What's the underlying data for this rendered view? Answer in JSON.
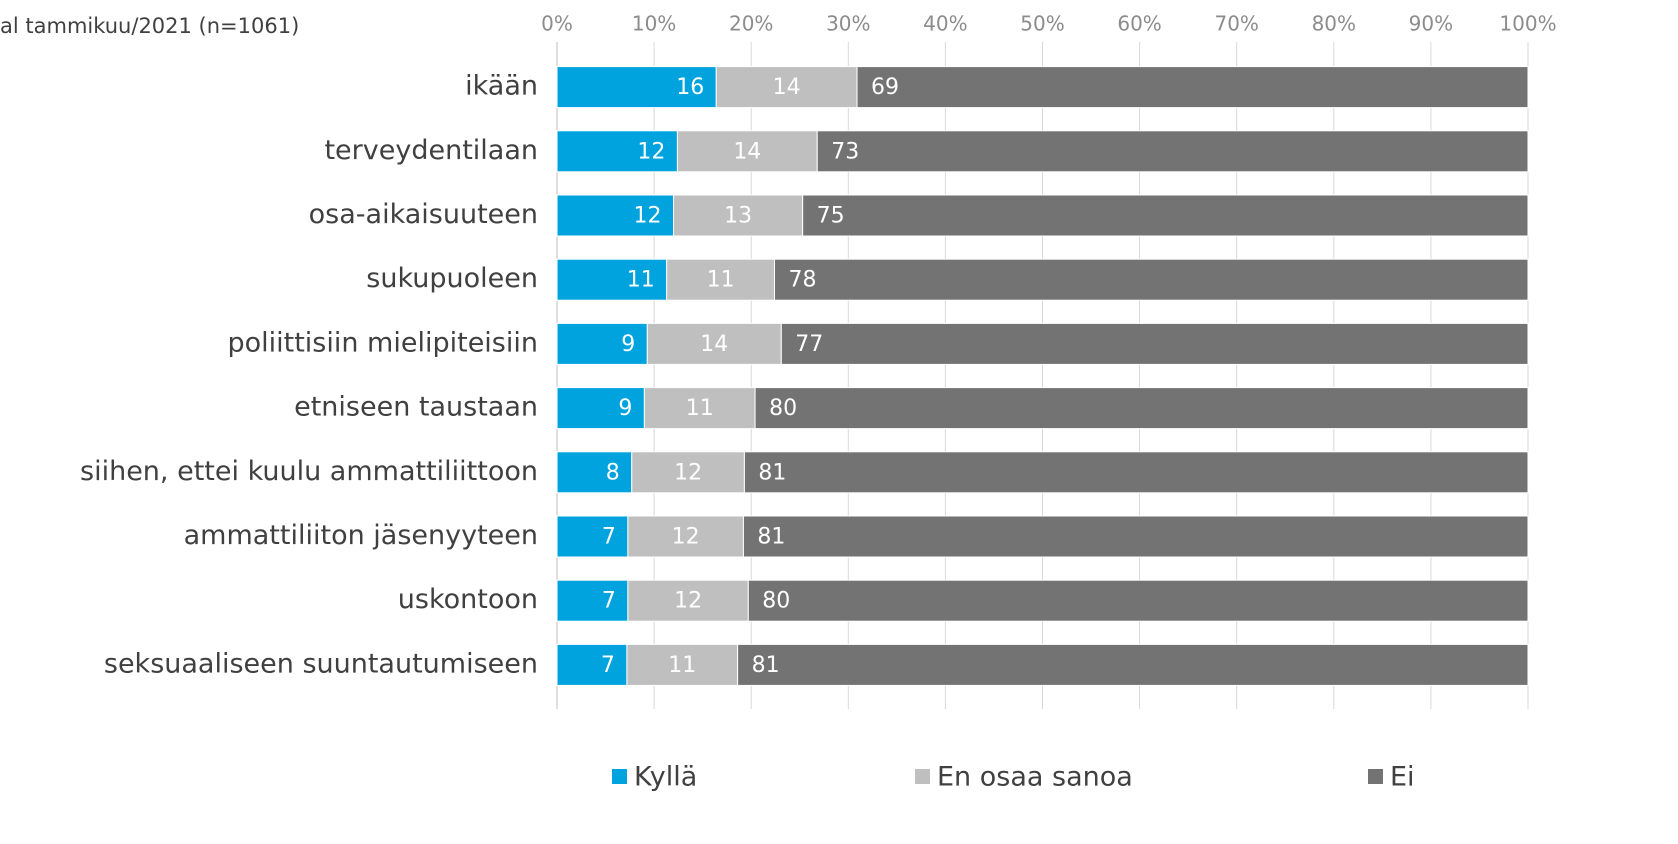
{
  "chart_data": {
    "type": "stacked-bar-horizontal",
    "title": "al tammikuu/2021  (n=1061)",
    "categories": [
      "ikään",
      "terveydentilaan",
      "osa-aikaisuuteen",
      "sukupuoleen",
      "poliittisiin mielipiteisiin",
      "etniseen taustaan",
      "siihen, ettei kuulu ammattiliittoon",
      "ammattiliiton jäsenyyteen",
      "uskontoon",
      "seksuaaliseen suuntautumiseen"
    ],
    "series": [
      {
        "name": "Kyllä",
        "color": "#00a3dd",
        "values": [
          16.4,
          12.4,
          12.0,
          11.3,
          9.3,
          9.0,
          7.7,
          7.3,
          7.3,
          7.2
        ],
        "value_labels": [
          "16",
          "12",
          "12",
          "11",
          "9",
          "9",
          "8",
          "7",
          "7",
          "7"
        ]
      },
      {
        "name": "En osaa sanoa",
        "color": "#bfbfbf",
        "values": [
          14.5,
          14.4,
          13.3,
          11.1,
          13.8,
          11.4,
          11.6,
          11.9,
          12.4,
          11.4
        ],
        "value_labels": [
          "14",
          "14",
          "13",
          "11",
          "14",
          "11",
          "12",
          "12",
          "12",
          "11"
        ]
      },
      {
        "name": "Ei",
        "color": "#737373",
        "values": [
          69.1,
          73.2,
          74.7,
          77.6,
          76.9,
          79.6,
          80.7,
          80.8,
          80.3,
          81.4
        ],
        "value_labels": [
          "69",
          "73",
          "75",
          "78",
          "77",
          "80",
          "81",
          "81",
          "80",
          "81"
        ]
      }
    ],
    "xlim": [
      0,
      100
    ],
    "xticks": [
      {
        "value": 0,
        "label": "0%"
      },
      {
        "value": 10,
        "label": "10%"
      },
      {
        "value": 20,
        "label": "20%"
      },
      {
        "value": 30,
        "label": "30%"
      },
      {
        "value": 40,
        "label": "40%"
      },
      {
        "value": 50,
        "label": "50%"
      },
      {
        "value": 60,
        "label": "60%"
      },
      {
        "value": 70,
        "label": "70%"
      },
      {
        "value": 80,
        "label": "80%"
      },
      {
        "value": 90,
        "label": "90%"
      },
      {
        "value": 100,
        "label": "100%"
      }
    ],
    "grid": true
  }
}
